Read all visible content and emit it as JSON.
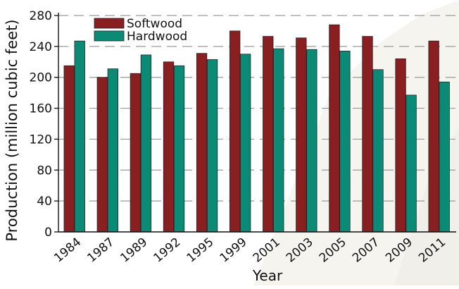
{
  "chart_data": {
    "type": "bar",
    "title": "",
    "xlabel": "Year",
    "ylabel": "Production (million cubic feet)",
    "ylim": [
      0,
      280
    ],
    "yticks": [
      0,
      40,
      80,
      120,
      160,
      200,
      240,
      280
    ],
    "grid": "horizontal dashed",
    "legend_position": "top-left",
    "categories": [
      "1984",
      "1987",
      "1989",
      "1992",
      "1995",
      "1999",
      "2001",
      "2003",
      "2005",
      "2007",
      "2009",
      "2011"
    ],
    "series": [
      {
        "name": "Softwood",
        "color": "#8a1f22",
        "values": [
          215,
          200,
          205,
          220,
          231,
          260,
          253,
          251,
          268,
          253,
          224,
          247
        ]
      },
      {
        "name": "Hardwood",
        "color": "#0b8a76",
        "values": [
          247,
          211,
          229,
          215,
          223,
          230,
          237,
          236,
          234,
          210,
          177,
          194
        ]
      }
    ]
  }
}
